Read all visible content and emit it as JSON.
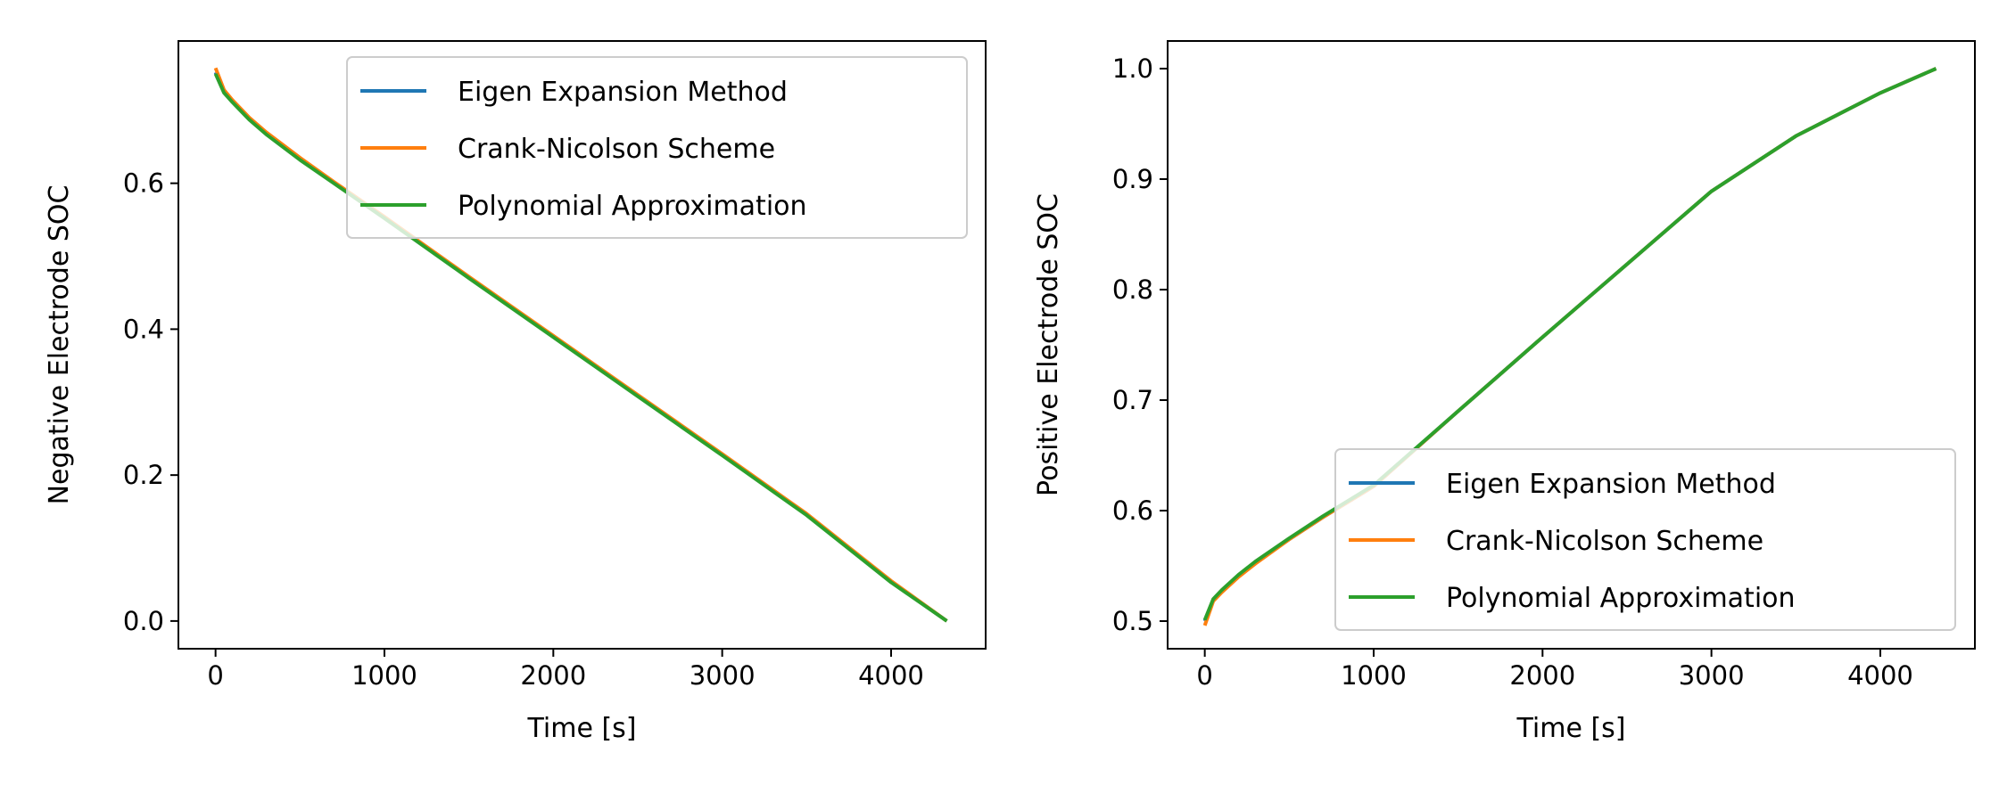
{
  "chart_data": [
    {
      "type": "line",
      "title": "",
      "xlabel": "Time [s]",
      "ylabel": "Negative Electrode SOC",
      "xlim": [
        -220,
        4560
      ],
      "ylim": [
        -0.038,
        0.795
      ],
      "xticks": [
        0,
        1000,
        2000,
        3000,
        4000
      ],
      "xtick_labels": [
        "0",
        "1000",
        "2000",
        "3000",
        "4000"
      ],
      "yticks": [
        0.0,
        0.2,
        0.4,
        0.6
      ],
      "ytick_labels": [
        "0.0",
        "0.2",
        "0.4",
        "0.6"
      ],
      "grid": false,
      "legend_position": "top-right",
      "series": [
        {
          "name": "Eigen Expansion Method",
          "color": "#1f77b4",
          "x": [
            0,
            50,
            100,
            200,
            300,
            500,
            700,
            1000,
            1500,
            2000,
            2500,
            3000,
            3500,
            4000,
            4330
          ],
          "y": [
            0.752,
            0.725,
            0.712,
            0.688,
            0.668,
            0.633,
            0.601,
            0.553,
            0.471,
            0.39,
            0.309,
            0.228,
            0.146,
            0.054,
            0.0
          ]
        },
        {
          "name": "Crank-Nicolson Scheme",
          "color": "#ff7f0e",
          "x": [
            0,
            50,
            100,
            200,
            300,
            500,
            700,
            1000,
            1500,
            2000,
            2500,
            3000,
            3500,
            4000,
            4330
          ],
          "y": [
            0.758,
            0.728,
            0.714,
            0.69,
            0.67,
            0.635,
            0.602,
            0.554,
            0.472,
            0.391,
            0.31,
            0.229,
            0.147,
            0.055,
            0.0
          ]
        },
        {
          "name": "Polynomial Approximation",
          "color": "#2ca02c",
          "x": [
            0,
            50,
            100,
            200,
            300,
            500,
            700,
            1000,
            1500,
            2000,
            2500,
            3000,
            3500,
            4000,
            4330
          ],
          "y": [
            0.75,
            0.724,
            0.711,
            0.687,
            0.667,
            0.632,
            0.6,
            0.552,
            0.47,
            0.389,
            0.308,
            0.227,
            0.145,
            0.053,
            0.0
          ]
        }
      ]
    },
    {
      "type": "line",
      "title": "",
      "xlabel": "Time [s]",
      "ylabel": "Positive Electrode SOC",
      "xlim": [
        -220,
        4560
      ],
      "ylim": [
        0.475,
        1.025
      ],
      "xticks": [
        0,
        1000,
        2000,
        3000,
        4000
      ],
      "xtick_labels": [
        "0",
        "1000",
        "2000",
        "3000",
        "4000"
      ],
      "yticks": [
        0.5,
        0.6,
        0.7,
        0.8,
        0.9,
        1.0
      ],
      "ytick_labels": [
        "0.5",
        "0.6",
        "0.7",
        "0.8",
        "0.9",
        "1.0"
      ],
      "grid": false,
      "legend_position": "lower-right",
      "series": [
        {
          "name": "Eigen Expansion Method",
          "color": "#1f77b4",
          "x": [
            0,
            50,
            100,
            200,
            300,
            500,
            700,
            1000,
            1500,
            2000,
            2500,
            3000,
            3500,
            4000,
            4330
          ],
          "y": [
            0.5,
            0.519,
            0.527,
            0.541,
            0.553,
            0.574,
            0.594,
            0.622,
            0.69,
            0.757,
            0.823,
            0.889,
            0.939,
            0.978,
            1.0
          ]
        },
        {
          "name": "Crank-Nicolson Scheme",
          "color": "#ff7f0e",
          "x": [
            0,
            50,
            100,
            200,
            300,
            500,
            700,
            1000,
            1500,
            2000,
            2500,
            3000,
            3500,
            4000,
            4330
          ],
          "y": [
            0.496,
            0.518,
            0.526,
            0.54,
            0.552,
            0.574,
            0.594,
            0.622,
            0.69,
            0.757,
            0.823,
            0.889,
            0.939,
            0.978,
            1.0
          ]
        },
        {
          "name": "Polynomial Approximation",
          "color": "#2ca02c",
          "x": [
            0,
            50,
            100,
            200,
            300,
            500,
            700,
            1000,
            1500,
            2000,
            2500,
            3000,
            3500,
            4000,
            4330
          ],
          "y": [
            0.501,
            0.52,
            0.528,
            0.542,
            0.554,
            0.575,
            0.595,
            0.623,
            0.69,
            0.757,
            0.823,
            0.889,
            0.939,
            0.978,
            1.0
          ]
        }
      ]
    }
  ]
}
